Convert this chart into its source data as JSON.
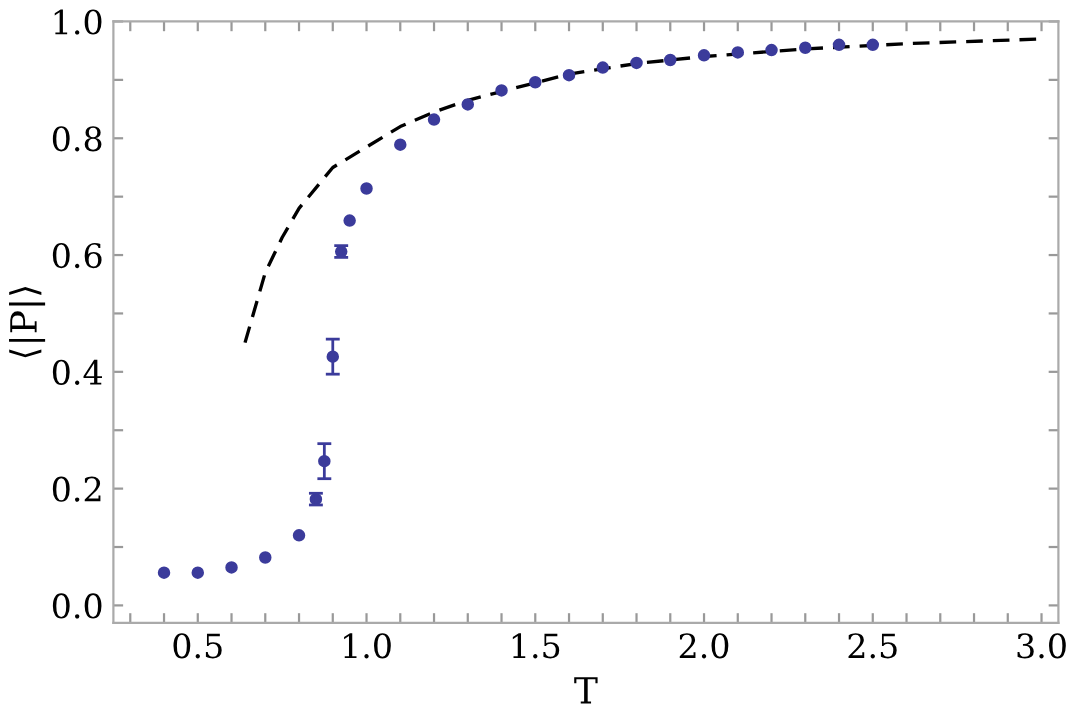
{
  "chart_data": {
    "type": "scatter",
    "xlabel": "T",
    "ylabel": "⟨|P|⟩",
    "xlim": [
      0.25,
      3.05
    ],
    "ylim": [
      -0.03,
      1.0
    ],
    "xticks": [
      {
        "value": 0.3,
        "label": null
      },
      {
        "value": 0.4,
        "label": null
      },
      0.5,
      {
        "value": 0.6,
        "label": null
      },
      {
        "value": 0.7,
        "label": null
      },
      {
        "value": 0.8,
        "label": null
      },
      {
        "value": 0.9,
        "label": null
      },
      {
        "value": 1.0,
        "label": "1.0"
      },
      {
        "value": 1.1,
        "label": null
      },
      {
        "value": 1.2,
        "label": null
      },
      {
        "value": 1.3,
        "label": null
      },
      {
        "value": 1.4,
        "label": null
      },
      1.5,
      {
        "value": 1.6,
        "label": null
      },
      {
        "value": 1.7,
        "label": null
      },
      {
        "value": 1.8,
        "label": null
      },
      {
        "value": 1.9,
        "label": null
      },
      {
        "value": 2.0,
        "label": "2.0"
      },
      {
        "value": 2.1,
        "label": null
      },
      {
        "value": 2.2,
        "label": null
      },
      {
        "value": 2.3,
        "label": null
      },
      {
        "value": 2.4,
        "label": null
      },
      2.5,
      {
        "value": 2.6,
        "label": null
      },
      {
        "value": 2.7,
        "label": null
      },
      {
        "value": 2.8,
        "label": null
      },
      {
        "value": 2.9,
        "label": null
      },
      {
        "value": 3.0,
        "label": "3.0"
      }
    ],
    "yticks": [
      {
        "value": 0.0,
        "label": "0.0"
      },
      {
        "value": 0.1,
        "label": null
      },
      0.2,
      {
        "value": 0.3,
        "label": null
      },
      0.4,
      {
        "value": 0.5,
        "label": null
      },
      0.6,
      {
        "value": 0.7,
        "label": null
      },
      0.8,
      {
        "value": 0.9,
        "label": null
      },
      {
        "value": 1.0,
        "label": "1.0"
      }
    ],
    "grid": false,
    "marker": "circle",
    "series": [
      {
        "color": "#3b3b9b",
        "x": [
          0.4,
          0.5,
          0.6,
          0.7,
          0.8,
          0.85,
          0.875,
          0.9,
          0.925,
          0.95,
          1.0,
          1.1,
          1.2,
          1.3,
          1.4,
          1.5,
          1.6,
          1.7,
          1.8,
          1.9,
          2.0,
          2.1,
          2.2,
          2.3,
          2.4,
          2.5
        ],
        "values": [
          0.056,
          0.056,
          0.065,
          0.082,
          0.12,
          0.182,
          0.247,
          0.426,
          0.606,
          0.659,
          0.714,
          0.789,
          0.832,
          0.858,
          0.882,
          0.896,
          0.908,
          0.921,
          0.929,
          0.934,
          0.942,
          0.947,
          0.951,
          0.955,
          0.96,
          0.96
        ],
        "errors": [
          null,
          null,
          null,
          null,
          null,
          0.01,
          0.03,
          0.03,
          0.01,
          null,
          null,
          null,
          null,
          null,
          null,
          null,
          null,
          null,
          null,
          null,
          null,
          null,
          null,
          null,
          null,
          null
        ]
      },
      {
        "type": "line",
        "color": "#000000",
        "line_style": "dashed",
        "marker": "none",
        "x": [
          0.64,
          0.7,
          0.75,
          0.8,
          0.9,
          1.0,
          1.1,
          1.2,
          1.3,
          1.4,
          1.5,
          1.6,
          1.8,
          2.0,
          2.3,
          2.6,
          3.0
        ],
        "values": [
          0.45,
          0.57,
          0.63,
          0.68,
          0.75,
          0.785,
          0.82,
          0.845,
          0.865,
          0.88,
          0.895,
          0.91,
          0.928,
          0.94,
          0.953,
          0.962,
          0.97
        ]
      }
    ]
  }
}
